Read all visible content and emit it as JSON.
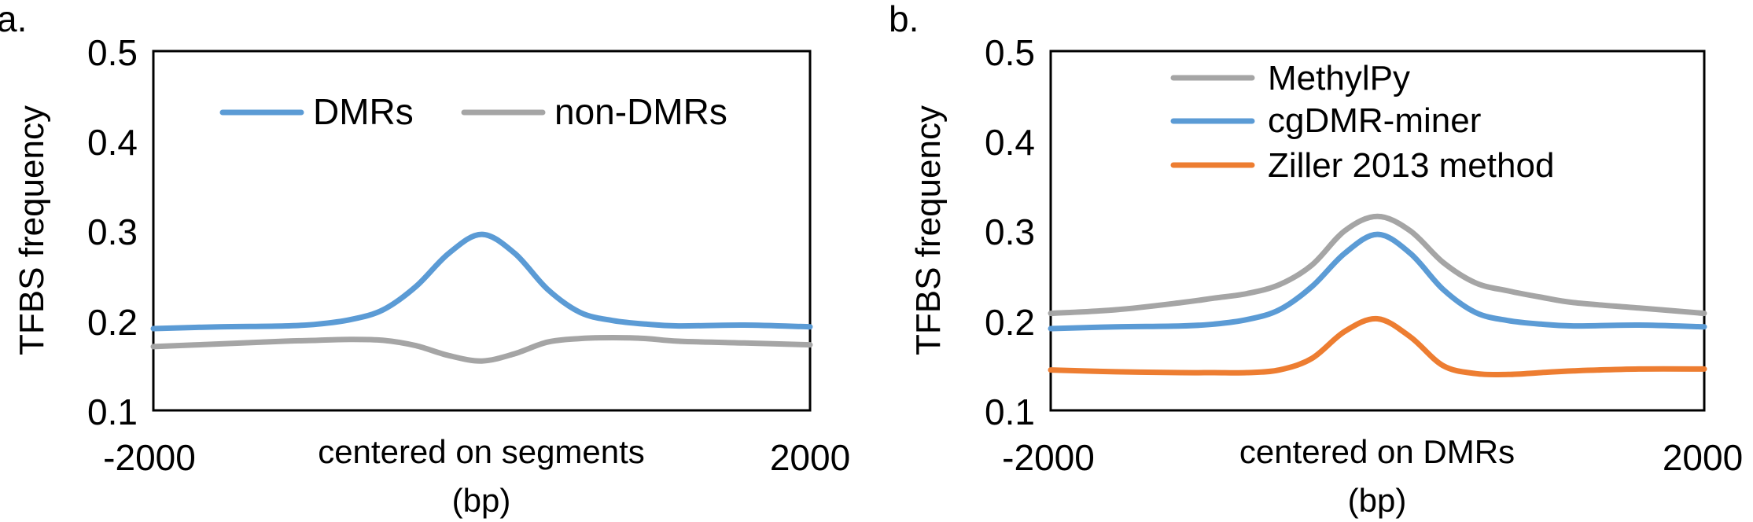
{
  "chart_data": [
    {
      "panel_label": "a.",
      "type": "line",
      "ylabel": "TFBS frequency",
      "xlabel_line1": "centered on segments",
      "xlabel_line2": "(bp)",
      "xlim": [
        -2000,
        2000
      ],
      "ylim": [
        0.1,
        0.5
      ],
      "x_tick_labels": [
        "-2000",
        "2000"
      ],
      "y_tick_labels": [
        "0.1",
        "0.2",
        "0.3",
        "0.4",
        "0.5"
      ],
      "y_ticks": [
        0.1,
        0.2,
        0.3,
        0.4,
        0.5
      ],
      "legend_position": "top",
      "grid": false,
      "x": [
        -2000,
        -1600,
        -1200,
        -1000,
        -800,
        -600,
        -400,
        -200,
        0,
        200,
        400,
        600,
        800,
        1000,
        1200,
        1600,
        2000
      ],
      "series": [
        {
          "name": "DMRs",
          "color": "#5b9bd5",
          "values": [
            0.191,
            0.193,
            0.194,
            0.196,
            0.201,
            0.212,
            0.238,
            0.275,
            0.296,
            0.275,
            0.235,
            0.209,
            0.2,
            0.196,
            0.194,
            0.195,
            0.193
          ]
        },
        {
          "name": "non-DMRs",
          "color": "#a5a5a5",
          "values": [
            0.171,
            0.174,
            0.177,
            0.178,
            0.179,
            0.178,
            0.172,
            0.161,
            0.155,
            0.163,
            0.176,
            0.18,
            0.181,
            0.18,
            0.177,
            0.175,
            0.173
          ]
        }
      ]
    },
    {
      "panel_label": "b.",
      "type": "line",
      "ylabel": "TFBS frequency",
      "xlabel_line1": "centered on DMRs",
      "xlabel_line2": "(bp)",
      "xlim": [
        -2000,
        2000
      ],
      "ylim": [
        0.1,
        0.5
      ],
      "x_tick_labels": [
        "-2000",
        "2000"
      ],
      "y_tick_labels": [
        "0.1",
        "0.2",
        "0.3",
        "0.4",
        "0.5"
      ],
      "y_ticks": [
        0.1,
        0.2,
        0.3,
        0.4,
        0.5
      ],
      "legend_position": "top",
      "grid": false,
      "x": [
        -2000,
        -1600,
        -1200,
        -1000,
        -800,
        -600,
        -400,
        -200,
        0,
        200,
        400,
        600,
        800,
        1000,
        1200,
        1600,
        2000
      ],
      "series": [
        {
          "name": "MethylPy",
          "color": "#a5a5a5",
          "values": [
            0.208,
            0.212,
            0.22,
            0.225,
            0.23,
            0.24,
            0.262,
            0.3,
            0.316,
            0.3,
            0.265,
            0.242,
            0.233,
            0.226,
            0.22,
            0.214,
            0.208
          ]
        },
        {
          "name": "cgDMR-miner",
          "color": "#5b9bd5",
          "values": [
            0.191,
            0.193,
            0.194,
            0.196,
            0.201,
            0.212,
            0.238,
            0.275,
            0.296,
            0.275,
            0.235,
            0.209,
            0.2,
            0.196,
            0.194,
            0.195,
            0.193
          ]
        },
        {
          "name": "Ziller 2013 method",
          "color": "#ed7d31",
          "values": [
            0.145,
            0.143,
            0.142,
            0.142,
            0.142,
            0.145,
            0.158,
            0.188,
            0.202,
            0.182,
            0.15,
            0.141,
            0.14,
            0.142,
            0.144,
            0.146,
            0.146
          ]
        }
      ]
    }
  ]
}
